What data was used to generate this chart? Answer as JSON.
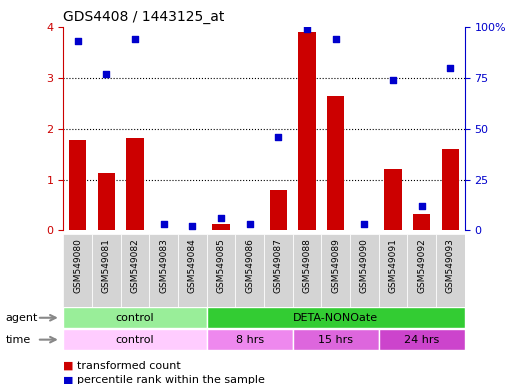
{
  "title": "GDS4408 / 1443125_at",
  "samples": [
    "GSM549080",
    "GSM549081",
    "GSM549082",
    "GSM549083",
    "GSM549084",
    "GSM549085",
    "GSM549086",
    "GSM549087",
    "GSM549088",
    "GSM549089",
    "GSM549090",
    "GSM549091",
    "GSM549092",
    "GSM549093"
  ],
  "red_values": [
    1.78,
    1.13,
    1.82,
    0.0,
    0.0,
    0.13,
    0.0,
    0.8,
    3.9,
    2.65,
    0.0,
    1.2,
    0.33,
    1.6
  ],
  "blue_values": [
    93,
    77,
    94,
    3,
    2,
    6,
    3,
    46,
    99,
    94,
    3,
    74,
    12,
    80
  ],
  "ylim_left": [
    0,
    4
  ],
  "ylim_right": [
    0,
    100
  ],
  "yticks_left": [
    0,
    1,
    2,
    3,
    4
  ],
  "yticks_right": [
    0,
    25,
    50,
    75,
    100
  ],
  "bar_color": "#cc0000",
  "dot_color": "#0000cc",
  "agent_row": [
    {
      "label": "control",
      "start": 0,
      "end": 5,
      "color": "#99ee99"
    },
    {
      "label": "DETA-NONOate",
      "start": 5,
      "end": 14,
      "color": "#33cc33"
    }
  ],
  "time_row": [
    {
      "label": "control",
      "start": 0,
      "end": 5,
      "color": "#ffccff"
    },
    {
      "label": "8 hrs",
      "start": 5,
      "end": 8,
      "color": "#ee88ee"
    },
    {
      "label": "15 hrs",
      "start": 8,
      "end": 11,
      "color": "#dd66dd"
    },
    {
      "label": "24 hrs",
      "start": 11,
      "end": 14,
      "color": "#cc44cc"
    }
  ],
  "legend_red": "transformed count",
  "legend_blue": "percentile rank within the sample",
  "agent_label": "agent",
  "time_label": "time",
  "tick_color_left": "#cc0000",
  "tick_color_right": "#0000cc",
  "xticklabel_bg": "#d4d4d4",
  "fig_bg": "#ffffff"
}
